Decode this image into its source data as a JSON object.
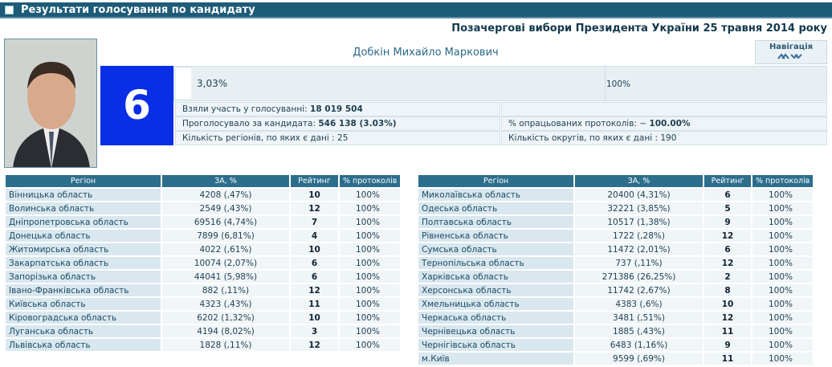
{
  "header": {
    "title": "Результати голосування по кандидату",
    "election": "Позачергові вибори Президента України 25 травня 2014 року"
  },
  "candidate": {
    "name": "Добкін Михайло Маркович",
    "number": "6"
  },
  "navigation": {
    "label": "Навігація"
  },
  "progress": {
    "percent": "3,03%",
    "total": "100%"
  },
  "stats": {
    "participated": {
      "label": "Взяли участь у голосуванні:",
      "value": "18 019 504"
    },
    "voted": {
      "label": "Проголосувало за кандидата:",
      "value": "546 138 (3.03%)"
    },
    "regions": "Кількість регіонів, по яких є дані : 25",
    "protocols": {
      "label": "% опрацьованих протоколів: ~",
      "value": "100.00%"
    },
    "districts": "Кількість округів, по яких є дані : 190"
  },
  "tables": [
    {
      "columns": [
        "Регіон",
        "ЗА, %",
        "Рейтинг",
        "% протоколів"
      ],
      "rows": [
        [
          "Вінницька область",
          "4208 (,47%)",
          "10",
          "100%"
        ],
        [
          "Волинська область",
          "2549 (,43%)",
          "12",
          "100%"
        ],
        [
          "Дніпропетровська область",
          "69516 (4,74%)",
          "7",
          "100%"
        ],
        [
          "Донецька область",
          "7899 (6,81%)",
          "4",
          "100%"
        ],
        [
          "Житомирська область",
          "4022 (,61%)",
          "10",
          "100%"
        ],
        [
          "Закарпатська область",
          "10074 (2,07%)",
          "6",
          "100%"
        ],
        [
          "Запорізька область",
          "44041 (5,98%)",
          "6",
          "100%"
        ],
        [
          "Івано-Франківська область",
          "882 (,11%)",
          "12",
          "100%"
        ],
        [
          "Київська область",
          "4323 (,43%)",
          "11",
          "100%"
        ],
        [
          "Кіровоградська область",
          "6202 (1,32%)",
          "10",
          "100%"
        ],
        [
          "Луганська область",
          "4194 (8,02%)",
          "3",
          "100%"
        ],
        [
          "Львівська область",
          "1828 (,11%)",
          "12",
          "100%"
        ]
      ]
    },
    {
      "columns": [
        "Регіон",
        "ЗА, %",
        "Рейтинг",
        "% протоколів"
      ],
      "rows": [
        [
          "Миколаївська область",
          "20400 (4,31%)",
          "6",
          "100%"
        ],
        [
          "Одеська область",
          "32221 (3,85%)",
          "5",
          "100%"
        ],
        [
          "Полтавська область",
          "10517 (1,38%)",
          "9",
          "100%"
        ],
        [
          "Рівненська область",
          "1722 (,28%)",
          "12",
          "100%"
        ],
        [
          "Сумська область",
          "11472 (2,01%)",
          "6",
          "100%"
        ],
        [
          "Тернопільська область",
          "737 (,11%)",
          "12",
          "100%"
        ],
        [
          "Харківська область",
          "271386 (26,25%)",
          "2",
          "100%"
        ],
        [
          "Херсонська область",
          "11742 (2,67%)",
          "8",
          "100%"
        ],
        [
          "Хмельницька область",
          "4383 (,6%)",
          "10",
          "100%"
        ],
        [
          "Черкаська область",
          "3481 (,51%)",
          "12",
          "100%"
        ],
        [
          "Чернівецька область",
          "1885 (,43%)",
          "11",
          "100%"
        ],
        [
          "Чернігівська область",
          "6483 (1,16%)",
          "9",
          "100%"
        ],
        [
          "м.Київ",
          "9599 (,69%)",
          "11",
          "100%"
        ]
      ]
    }
  ]
}
